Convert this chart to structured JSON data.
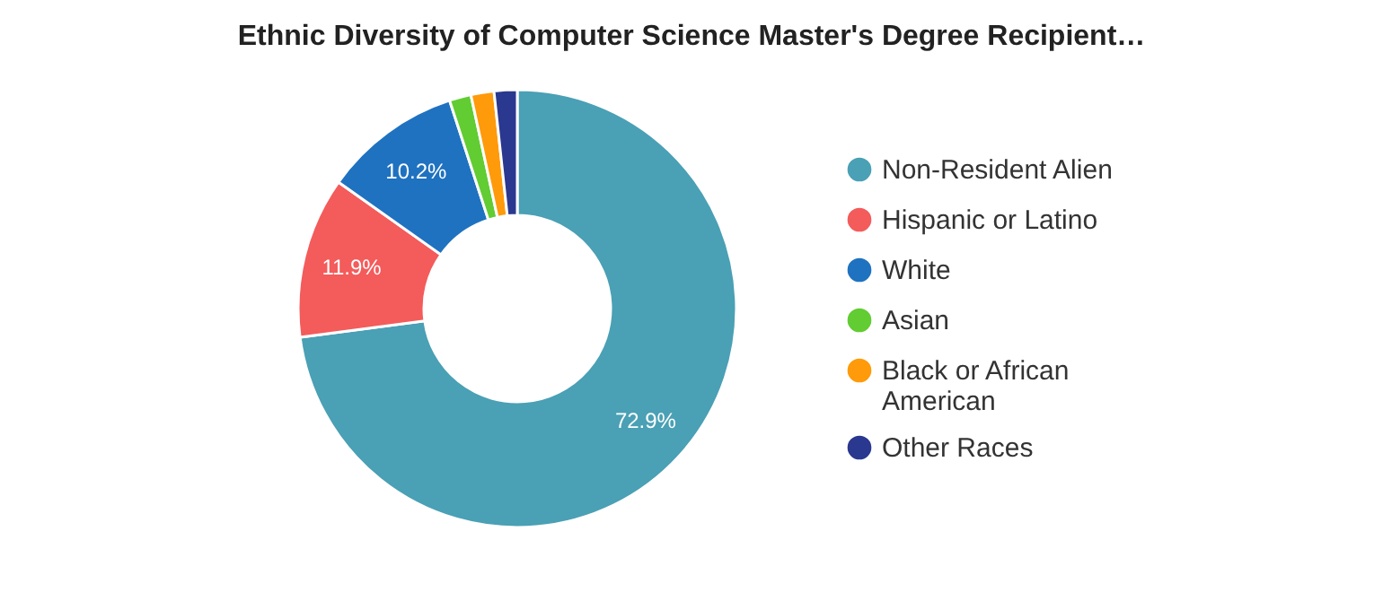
{
  "chart_data": {
    "type": "donut",
    "title": "Ethnic Diversity of Computer Science Master's Degree Recipient…",
    "categories": [
      "Non-Resident Alien",
      "Hispanic or Latino",
      "White",
      "Asian",
      "Black or African American",
      "Other Races"
    ],
    "values": [
      72.9,
      11.9,
      10.2,
      1.6,
      1.7,
      1.7
    ],
    "colors": [
      "#4aa0b5",
      "#f45b5b",
      "#1f72c0",
      "#62cc33",
      "#ff9a0a",
      "#2a3890"
    ],
    "value_labels": [
      "72.9%",
      "11.9%",
      "10.2%",
      null,
      null,
      null
    ],
    "legend": "right"
  }
}
